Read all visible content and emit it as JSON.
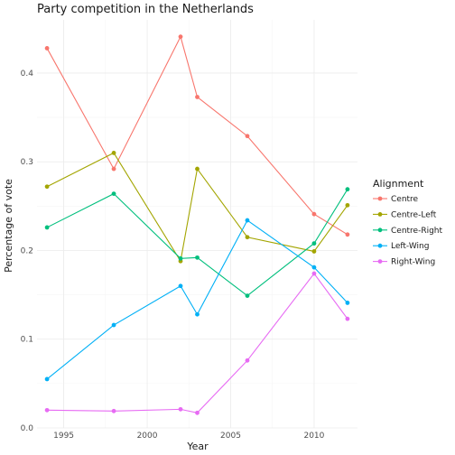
{
  "chart_data": {
    "type": "line",
    "title": "Party competition in the Netherlands",
    "xlabel": "Year",
    "ylabel": "Percentage of vote",
    "xlim": [
      1993.4,
      2012.6
    ],
    "ylim": [
      0,
      0.46
    ],
    "x_ticks": [
      1995,
      2000,
      2005,
      2010
    ],
    "x_tick_labels": [
      "1995",
      "2000",
      "2005",
      "2010"
    ],
    "y_ticks": [
      0.0,
      0.1,
      0.2,
      0.3,
      0.4
    ],
    "y_tick_labels": [
      "0.0",
      "0.1",
      "0.2",
      "0.3",
      "0.4"
    ],
    "grid": true,
    "legend": {
      "title": "Alignment",
      "position": "right"
    },
    "series": [
      {
        "name": "Centre",
        "color": "#F8766D",
        "x": [
          1994,
          1998,
          2002,
          2003,
          2006,
          2010,
          2012
        ],
        "y": [
          0.428,
          0.292,
          0.441,
          0.373,
          0.329,
          0.241,
          0.218
        ]
      },
      {
        "name": "Centre-Left",
        "color": "#A3A500",
        "x": [
          1994,
          1998,
          2002,
          2003,
          2006,
          2010,
          2012
        ],
        "y": [
          0.272,
          0.31,
          0.188,
          0.292,
          0.215,
          0.199,
          0.251
        ]
      },
      {
        "name": "Centre-Right",
        "color": "#00BF7D",
        "x": [
          1994,
          1998,
          2002,
          2003,
          2006,
          2010,
          2012
        ],
        "y": [
          0.226,
          0.264,
          0.191,
          0.192,
          0.149,
          0.208,
          0.269
        ]
      },
      {
        "name": "Left-Wing",
        "color": "#00B0F6",
        "x": [
          1994,
          1998,
          2002,
          2003,
          2006,
          2010,
          2012
        ],
        "y": [
          0.055,
          0.116,
          0.16,
          0.128,
          0.234,
          0.181,
          0.141
        ]
      },
      {
        "name": "Right-Wing",
        "color": "#E76BF3",
        "x": [
          1994,
          1998,
          2002,
          2003,
          2006,
          2010,
          2012
        ],
        "y": [
          0.02,
          0.019,
          0.021,
          0.017,
          0.076,
          0.174,
          0.123
        ]
      }
    ]
  }
}
